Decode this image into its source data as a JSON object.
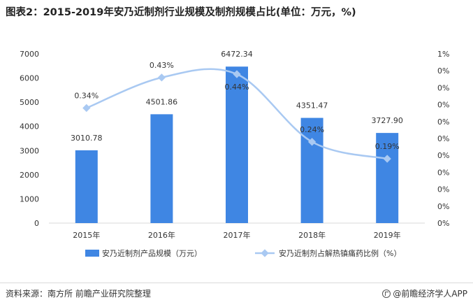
{
  "title": "图表2：2015-2019年安乃近制剂行业规模及制剂规模占比(单位：万元，%)",
  "source": "资料来源：南方所 前瞻产业研究院整理",
  "brand": "@前瞻经济学人APP",
  "brand_icon": "qianzhan-logo-icon",
  "colors": {
    "bar": "#3f86e3",
    "line": "#a9c9f2",
    "grid": "#d9d9d9",
    "text": "#333333"
  },
  "chart_data": {
    "type": "bar",
    "title": "图表2：2015-2019年安乃近制剂行业规模及制剂规模占比(单位：万元，%)",
    "categories": [
      "2015年",
      "2016年",
      "2017年",
      "2018年",
      "2019年"
    ],
    "ylim": [
      0,
      7000
    ],
    "y_ticks": [
      "0",
      "1000",
      "2000",
      "3000",
      "4000",
      "5000",
      "6000",
      "7000"
    ],
    "y2_ticks": [
      "0%",
      "0%",
      "0%",
      "0%",
      "0%",
      "0%",
      "0%",
      "0%",
      "0%",
      "0%",
      "1%"
    ],
    "y2lim": [
      0,
      0.5
    ],
    "grid": false,
    "legend_position": "bottom",
    "series": [
      {
        "name": "安乃近制剂产品规模（万元）",
        "type": "bar",
        "axis": "left",
        "values": [
          3010.78,
          4501.86,
          6472.34,
          4351.47,
          3727.9
        ],
        "labels": [
          "3010.78",
          "4501.86",
          "6472.34",
          "4351.47",
          "3727.90"
        ]
      },
      {
        "name": "安乃近制剂占解热镇痛药比例（%）",
        "type": "line",
        "axis": "right",
        "values": [
          0.34,
          0.43,
          0.44,
          0.24,
          0.19
        ],
        "labels": [
          "0.34%",
          "0.43%",
          "0.44%",
          "0.24%",
          "0.19%"
        ]
      }
    ]
  }
}
